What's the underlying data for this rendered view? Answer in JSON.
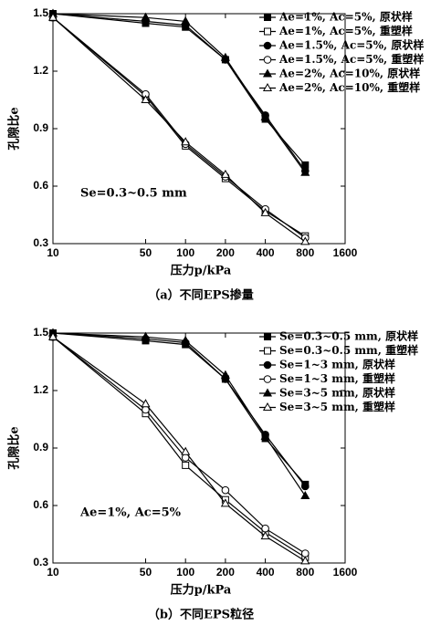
{
  "chart_data": [
    {
      "type": "line",
      "x_label": "压力p/kPa",
      "y_label": "孔隙比e",
      "caption": "（a）不同EPS掺量",
      "annotation": "Se=0.3~0.5 mm",
      "x": [
        10,
        50,
        100,
        200,
        400,
        800
      ],
      "xscale": "log",
      "xlim": [
        10,
        1600
      ],
      "xticks": [
        10,
        50,
        100,
        200,
        400,
        800,
        1600
      ],
      "ylim": [
        0.3,
        1.5
      ],
      "yticks": [
        1.5,
        1.2,
        0.9,
        0.6,
        0.3
      ],
      "legend": "upper right",
      "series": [
        {
          "name": "Ae=1%, Ac=5%, 原状样",
          "color": "#000",
          "marker": "square",
          "filled": true,
          "values": [
            1.5,
            1.45,
            1.43,
            1.26,
            0.95,
            0.71
          ]
        },
        {
          "name": "Ae=1%, Ac=5%, 重塑样",
          "color": "#000",
          "marker": "square",
          "filled": false,
          "values": [
            1.48,
            1.07,
            0.81,
            0.64,
            0.47,
            0.34
          ]
        },
        {
          "name": "Ae=1.5%, Ac=5%, 原状样",
          "color": "#000",
          "marker": "circle",
          "filled": true,
          "values": [
            1.5,
            1.46,
            1.44,
            1.26,
            0.97,
            0.68
          ]
        },
        {
          "name": "Ae=1.5%, Ac=5%, 重塑样",
          "color": "#000",
          "marker": "circle",
          "filled": false,
          "values": [
            1.48,
            1.08,
            0.82,
            0.65,
            0.48,
            0.33
          ]
        },
        {
          "name": "Ae=2%, Ac=10%, 原状样",
          "color": "#000",
          "marker": "triangle",
          "filled": true,
          "values": [
            1.5,
            1.48,
            1.46,
            1.27,
            0.96,
            0.67
          ]
        },
        {
          "name": "Ae=2%, Ac=10%, 重塑样",
          "color": "#000",
          "marker": "triangle",
          "filled": false,
          "values": [
            1.48,
            1.05,
            0.83,
            0.66,
            0.46,
            0.31
          ]
        }
      ]
    },
    {
      "type": "line",
      "x_label": "压力p/kPa",
      "y_label": "孔隙比e",
      "caption": "（b）不同EPS粒径",
      "annotation": "Ae=1%, Ac=5%",
      "x": [
        10,
        50,
        100,
        200,
        400,
        800
      ],
      "xscale": "log",
      "xlim": [
        10,
        1600
      ],
      "xticks": [
        10,
        50,
        100,
        200,
        400,
        800,
        1600
      ],
      "ylim": [
        0.3,
        1.5
      ],
      "yticks": [
        1.5,
        1.2,
        0.9,
        0.6,
        0.3
      ],
      "legend": "upper right",
      "series": [
        {
          "name": "Se=0.3~0.5 mm, 原状样",
          "color": "#000",
          "marker": "square",
          "filled": true,
          "values": [
            1.5,
            1.46,
            1.44,
            1.26,
            0.95,
            0.71
          ]
        },
        {
          "name": "Se=0.3~0.5 mm, 重塑样",
          "color": "#000",
          "marker": "square",
          "filled": false,
          "values": [
            1.48,
            1.08,
            0.81,
            0.63,
            0.46,
            0.33
          ]
        },
        {
          "name": "Se=1~3 mm, 原状样",
          "color": "#000",
          "marker": "circle",
          "filled": true,
          "values": [
            1.5,
            1.47,
            1.45,
            1.26,
            0.97,
            0.7
          ]
        },
        {
          "name": "Se=1~3 mm, 重塑样",
          "color": "#000",
          "marker": "circle",
          "filled": false,
          "values": [
            1.48,
            1.1,
            0.85,
            0.68,
            0.48,
            0.35
          ]
        },
        {
          "name": "Se=3~5 mm, 原状样",
          "color": "#000",
          "marker": "triangle",
          "filled": true,
          "values": [
            1.5,
            1.48,
            1.46,
            1.28,
            0.96,
            0.65
          ]
        },
        {
          "name": "Se=3~5 mm, 重塑样",
          "color": "#000",
          "marker": "triangle",
          "filled": false,
          "values": [
            1.48,
            1.13,
            0.88,
            0.61,
            0.44,
            0.31
          ]
        }
      ]
    }
  ]
}
